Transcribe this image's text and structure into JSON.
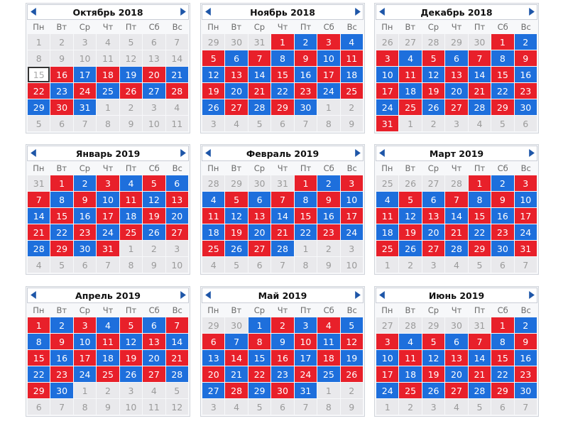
{
  "colors": {
    "red": "#e8202a",
    "blue": "#1e6fdc",
    "gray": "#e9e9ec"
  },
  "weekdays": [
    "Пн",
    "Вт",
    "Ср",
    "Чт",
    "Пт",
    "Сб",
    "Вс"
  ],
  "calendars": [
    {
      "title": "Октябрь 2018",
      "days": [
        [
          "1",
          "o"
        ],
        [
          "2",
          "o"
        ],
        [
          "3",
          "o"
        ],
        [
          "4",
          "o"
        ],
        [
          "5",
          "o"
        ],
        [
          "6",
          "o"
        ],
        [
          "7",
          "o"
        ],
        [
          "8",
          "o"
        ],
        [
          "9",
          "o"
        ],
        [
          "10",
          "o"
        ],
        [
          "11",
          "o"
        ],
        [
          "12",
          "o"
        ],
        [
          "13",
          "o"
        ],
        [
          "14",
          "o"
        ],
        [
          "15",
          "today"
        ],
        [
          "16",
          "r"
        ],
        [
          "17",
          "b"
        ],
        [
          "18",
          "r"
        ],
        [
          "19",
          "b"
        ],
        [
          "20",
          "r"
        ],
        [
          "21",
          "b"
        ],
        [
          "22",
          "r"
        ],
        [
          "23",
          "b"
        ],
        [
          "24",
          "r"
        ],
        [
          "25",
          "b"
        ],
        [
          "26",
          "r"
        ],
        [
          "27",
          "b"
        ],
        [
          "28",
          "r"
        ],
        [
          "29",
          "b"
        ],
        [
          "30",
          "r"
        ],
        [
          "31",
          "b"
        ],
        [
          "1",
          "o"
        ],
        [
          "2",
          "o"
        ],
        [
          "3",
          "o"
        ],
        [
          "4",
          "o"
        ],
        [
          "5",
          "o"
        ],
        [
          "6",
          "o"
        ],
        [
          "7",
          "o"
        ],
        [
          "8",
          "o"
        ],
        [
          "9",
          "o"
        ],
        [
          "10",
          "o"
        ],
        [
          "11",
          "o"
        ]
      ]
    },
    {
      "title": "Ноябрь 2018",
      "days": [
        [
          "29",
          "o"
        ],
        [
          "30",
          "o"
        ],
        [
          "31",
          "o"
        ],
        [
          "1",
          "r"
        ],
        [
          "2",
          "b"
        ],
        [
          "3",
          "r"
        ],
        [
          "4",
          "b"
        ],
        [
          "5",
          "r"
        ],
        [
          "6",
          "b"
        ],
        [
          "7",
          "r"
        ],
        [
          "8",
          "b"
        ],
        [
          "9",
          "r"
        ],
        [
          "10",
          "b"
        ],
        [
          "11",
          "r"
        ],
        [
          "12",
          "b"
        ],
        [
          "13",
          "r"
        ],
        [
          "14",
          "b"
        ],
        [
          "15",
          "r"
        ],
        [
          "16",
          "b"
        ],
        [
          "17",
          "r"
        ],
        [
          "18",
          "b"
        ],
        [
          "19",
          "r"
        ],
        [
          "20",
          "b"
        ],
        [
          "21",
          "r"
        ],
        [
          "22",
          "b"
        ],
        [
          "23",
          "r"
        ],
        [
          "24",
          "b"
        ],
        [
          "25",
          "r"
        ],
        [
          "26",
          "b"
        ],
        [
          "27",
          "r"
        ],
        [
          "28",
          "b"
        ],
        [
          "29",
          "r"
        ],
        [
          "30",
          "b"
        ],
        [
          "1",
          "o"
        ],
        [
          "2",
          "o"
        ],
        [
          "3",
          "o"
        ],
        [
          "4",
          "o"
        ],
        [
          "5",
          "o"
        ],
        [
          "6",
          "o"
        ],
        [
          "7",
          "o"
        ],
        [
          "8",
          "o"
        ],
        [
          "9",
          "o"
        ]
      ]
    },
    {
      "title": "Декабрь 2018",
      "days": [
        [
          "26",
          "o"
        ],
        [
          "27",
          "o"
        ],
        [
          "28",
          "o"
        ],
        [
          "29",
          "o"
        ],
        [
          "30",
          "o"
        ],
        [
          "1",
          "r"
        ],
        [
          "2",
          "b"
        ],
        [
          "3",
          "r"
        ],
        [
          "4",
          "b"
        ],
        [
          "5",
          "r"
        ],
        [
          "6",
          "b"
        ],
        [
          "7",
          "r"
        ],
        [
          "8",
          "b"
        ],
        [
          "9",
          "r"
        ],
        [
          "10",
          "b"
        ],
        [
          "11",
          "r"
        ],
        [
          "12",
          "b"
        ],
        [
          "13",
          "r"
        ],
        [
          "14",
          "b"
        ],
        [
          "15",
          "r"
        ],
        [
          "16",
          "b"
        ],
        [
          "17",
          "r"
        ],
        [
          "18",
          "b"
        ],
        [
          "19",
          "r"
        ],
        [
          "20",
          "b"
        ],
        [
          "21",
          "r"
        ],
        [
          "22",
          "b"
        ],
        [
          "23",
          "r"
        ],
        [
          "24",
          "b"
        ],
        [
          "25",
          "r"
        ],
        [
          "26",
          "b"
        ],
        [
          "27",
          "r"
        ],
        [
          "28",
          "b"
        ],
        [
          "29",
          "r"
        ],
        [
          "30",
          "b"
        ],
        [
          "31",
          "r"
        ],
        [
          "1",
          "o"
        ],
        [
          "2",
          "o"
        ],
        [
          "3",
          "o"
        ],
        [
          "4",
          "o"
        ],
        [
          "5",
          "o"
        ],
        [
          "6",
          "o"
        ]
      ]
    },
    {
      "title": "Январь 2019",
      "days": [
        [
          "31",
          "o"
        ],
        [
          "1",
          "r"
        ],
        [
          "2",
          "b"
        ],
        [
          "3",
          "r"
        ],
        [
          "4",
          "b"
        ],
        [
          "5",
          "r"
        ],
        [
          "6",
          "b"
        ],
        [
          "7",
          "r"
        ],
        [
          "8",
          "b"
        ],
        [
          "9",
          "r"
        ],
        [
          "10",
          "b"
        ],
        [
          "11",
          "r"
        ],
        [
          "12",
          "b"
        ],
        [
          "13",
          "r"
        ],
        [
          "14",
          "b"
        ],
        [
          "15",
          "r"
        ],
        [
          "16",
          "b"
        ],
        [
          "17",
          "r"
        ],
        [
          "18",
          "b"
        ],
        [
          "19",
          "r"
        ],
        [
          "20",
          "b"
        ],
        [
          "21",
          "r"
        ],
        [
          "22",
          "b"
        ],
        [
          "23",
          "r"
        ],
        [
          "24",
          "b"
        ],
        [
          "25",
          "r"
        ],
        [
          "26",
          "b"
        ],
        [
          "27",
          "r"
        ],
        [
          "28",
          "b"
        ],
        [
          "29",
          "r"
        ],
        [
          "30",
          "b"
        ],
        [
          "31",
          "r"
        ],
        [
          "1",
          "o"
        ],
        [
          "2",
          "o"
        ],
        [
          "3",
          "o"
        ],
        [
          "4",
          "o"
        ],
        [
          "5",
          "o"
        ],
        [
          "6",
          "o"
        ],
        [
          "7",
          "o"
        ],
        [
          "8",
          "o"
        ],
        [
          "9",
          "o"
        ],
        [
          "10",
          "o"
        ]
      ]
    },
    {
      "title": "Февраль 2019",
      "days": [
        [
          "28",
          "o"
        ],
        [
          "29",
          "o"
        ],
        [
          "30",
          "o"
        ],
        [
          "31",
          "o"
        ],
        [
          "1",
          "r"
        ],
        [
          "2",
          "b"
        ],
        [
          "3",
          "r"
        ],
        [
          "4",
          "b"
        ],
        [
          "5",
          "r"
        ],
        [
          "6",
          "b"
        ],
        [
          "7",
          "r"
        ],
        [
          "8",
          "b"
        ],
        [
          "9",
          "r"
        ],
        [
          "10",
          "b"
        ],
        [
          "11",
          "r"
        ],
        [
          "12",
          "b"
        ],
        [
          "13",
          "r"
        ],
        [
          "14",
          "b"
        ],
        [
          "15",
          "r"
        ],
        [
          "16",
          "b"
        ],
        [
          "17",
          "r"
        ],
        [
          "18",
          "b"
        ],
        [
          "19",
          "r"
        ],
        [
          "20",
          "b"
        ],
        [
          "21",
          "r"
        ],
        [
          "22",
          "b"
        ],
        [
          "23",
          "r"
        ],
        [
          "24",
          "b"
        ],
        [
          "25",
          "r"
        ],
        [
          "26",
          "b"
        ],
        [
          "27",
          "r"
        ],
        [
          "28",
          "b"
        ],
        [
          "1",
          "o"
        ],
        [
          "2",
          "o"
        ],
        [
          "3",
          "o"
        ],
        [
          "4",
          "o"
        ],
        [
          "5",
          "o"
        ],
        [
          "6",
          "o"
        ],
        [
          "7",
          "o"
        ],
        [
          "8",
          "o"
        ],
        [
          "9",
          "o"
        ],
        [
          "10",
          "o"
        ]
      ]
    },
    {
      "title": "Март 2019",
      "days": [
        [
          "25",
          "o"
        ],
        [
          "26",
          "o"
        ],
        [
          "27",
          "o"
        ],
        [
          "28",
          "o"
        ],
        [
          "1",
          "r"
        ],
        [
          "2",
          "b"
        ],
        [
          "3",
          "r"
        ],
        [
          "4",
          "b"
        ],
        [
          "5",
          "r"
        ],
        [
          "6",
          "b"
        ],
        [
          "7",
          "r"
        ],
        [
          "8",
          "b"
        ],
        [
          "9",
          "r"
        ],
        [
          "10",
          "b"
        ],
        [
          "11",
          "r"
        ],
        [
          "12",
          "b"
        ],
        [
          "13",
          "r"
        ],
        [
          "14",
          "b"
        ],
        [
          "15",
          "r"
        ],
        [
          "16",
          "b"
        ],
        [
          "17",
          "r"
        ],
        [
          "18",
          "b"
        ],
        [
          "19",
          "r"
        ],
        [
          "20",
          "b"
        ],
        [
          "21",
          "r"
        ],
        [
          "22",
          "b"
        ],
        [
          "23",
          "r"
        ],
        [
          "24",
          "b"
        ],
        [
          "25",
          "r"
        ],
        [
          "26",
          "b"
        ],
        [
          "27",
          "r"
        ],
        [
          "28",
          "b"
        ],
        [
          "29",
          "r"
        ],
        [
          "30",
          "b"
        ],
        [
          "31",
          "r"
        ],
        [
          "1",
          "o"
        ],
        [
          "2",
          "o"
        ],
        [
          "3",
          "o"
        ],
        [
          "4",
          "o"
        ],
        [
          "5",
          "o"
        ],
        [
          "6",
          "o"
        ],
        [
          "7",
          "o"
        ]
      ]
    },
    {
      "title": "Апрель 2019",
      "days": [
        [
          "1",
          "r"
        ],
        [
          "2",
          "b"
        ],
        [
          "3",
          "r"
        ],
        [
          "4",
          "b"
        ],
        [
          "5",
          "r"
        ],
        [
          "6",
          "b"
        ],
        [
          "7",
          "r"
        ],
        [
          "8",
          "b"
        ],
        [
          "9",
          "r"
        ],
        [
          "10",
          "b"
        ],
        [
          "11",
          "r"
        ],
        [
          "12",
          "b"
        ],
        [
          "13",
          "r"
        ],
        [
          "14",
          "b"
        ],
        [
          "15",
          "r"
        ],
        [
          "16",
          "b"
        ],
        [
          "17",
          "r"
        ],
        [
          "18",
          "b"
        ],
        [
          "19",
          "r"
        ],
        [
          "20",
          "b"
        ],
        [
          "21",
          "r"
        ],
        [
          "22",
          "b"
        ],
        [
          "23",
          "r"
        ],
        [
          "24",
          "b"
        ],
        [
          "25",
          "r"
        ],
        [
          "26",
          "b"
        ],
        [
          "27",
          "r"
        ],
        [
          "28",
          "b"
        ],
        [
          "29",
          "r"
        ],
        [
          "30",
          "b"
        ],
        [
          "1",
          "o"
        ],
        [
          "2",
          "o"
        ],
        [
          "3",
          "o"
        ],
        [
          "4",
          "o"
        ],
        [
          "5",
          "o"
        ],
        [
          "6",
          "o"
        ],
        [
          "7",
          "o"
        ],
        [
          "8",
          "o"
        ],
        [
          "9",
          "o"
        ],
        [
          "10",
          "o"
        ],
        [
          "11",
          "o"
        ],
        [
          "12",
          "o"
        ]
      ]
    },
    {
      "title": "Май 2019",
      "days": [
        [
          "29",
          "o"
        ],
        [
          "30",
          "o"
        ],
        [
          "1",
          "b"
        ],
        [
          "2",
          "r"
        ],
        [
          "3",
          "b"
        ],
        [
          "4",
          "r"
        ],
        [
          "5",
          "b"
        ],
        [
          "6",
          "r"
        ],
        [
          "7",
          "b"
        ],
        [
          "8",
          "r"
        ],
        [
          "9",
          "b"
        ],
        [
          "10",
          "r"
        ],
        [
          "11",
          "b"
        ],
        [
          "12",
          "r"
        ],
        [
          "13",
          "b"
        ],
        [
          "14",
          "r"
        ],
        [
          "15",
          "b"
        ],
        [
          "16",
          "r"
        ],
        [
          "17",
          "b"
        ],
        [
          "18",
          "r"
        ],
        [
          "19",
          "b"
        ],
        [
          "20",
          "r"
        ],
        [
          "21",
          "b"
        ],
        [
          "22",
          "r"
        ],
        [
          "23",
          "b"
        ],
        [
          "24",
          "r"
        ],
        [
          "25",
          "b"
        ],
        [
          "26",
          "r"
        ],
        [
          "27",
          "b"
        ],
        [
          "28",
          "r"
        ],
        [
          "29",
          "b"
        ],
        [
          "30",
          "r"
        ],
        [
          "31",
          "b"
        ],
        [
          "1",
          "o"
        ],
        [
          "2",
          "o"
        ],
        [
          "3",
          "o"
        ],
        [
          "4",
          "o"
        ],
        [
          "5",
          "o"
        ],
        [
          "6",
          "o"
        ],
        [
          "7",
          "o"
        ],
        [
          "8",
          "o"
        ],
        [
          "9",
          "o"
        ]
      ]
    },
    {
      "title": "Июнь 2019",
      "days": [
        [
          "27",
          "o"
        ],
        [
          "28",
          "o"
        ],
        [
          "29",
          "o"
        ],
        [
          "30",
          "o"
        ],
        [
          "31",
          "o"
        ],
        [
          "1",
          "r"
        ],
        [
          "2",
          "b"
        ],
        [
          "3",
          "r"
        ],
        [
          "4",
          "b"
        ],
        [
          "5",
          "r"
        ],
        [
          "6",
          "b"
        ],
        [
          "7",
          "r"
        ],
        [
          "8",
          "b"
        ],
        [
          "9",
          "r"
        ],
        [
          "10",
          "b"
        ],
        [
          "11",
          "r"
        ],
        [
          "12",
          "b"
        ],
        [
          "13",
          "r"
        ],
        [
          "14",
          "b"
        ],
        [
          "15",
          "r"
        ],
        [
          "16",
          "b"
        ],
        [
          "17",
          "r"
        ],
        [
          "18",
          "b"
        ],
        [
          "19",
          "r"
        ],
        [
          "20",
          "b"
        ],
        [
          "21",
          "r"
        ],
        [
          "22",
          "b"
        ],
        [
          "23",
          "r"
        ],
        [
          "24",
          "b"
        ],
        [
          "25",
          "r"
        ],
        [
          "26",
          "b"
        ],
        [
          "27",
          "r"
        ],
        [
          "28",
          "b"
        ],
        [
          "29",
          "r"
        ],
        [
          "30",
          "b"
        ],
        [
          "1",
          "o"
        ],
        [
          "2",
          "o"
        ],
        [
          "3",
          "o"
        ],
        [
          "4",
          "o"
        ],
        [
          "5",
          "o"
        ],
        [
          "6",
          "o"
        ],
        [
          "7",
          "o"
        ]
      ]
    }
  ]
}
